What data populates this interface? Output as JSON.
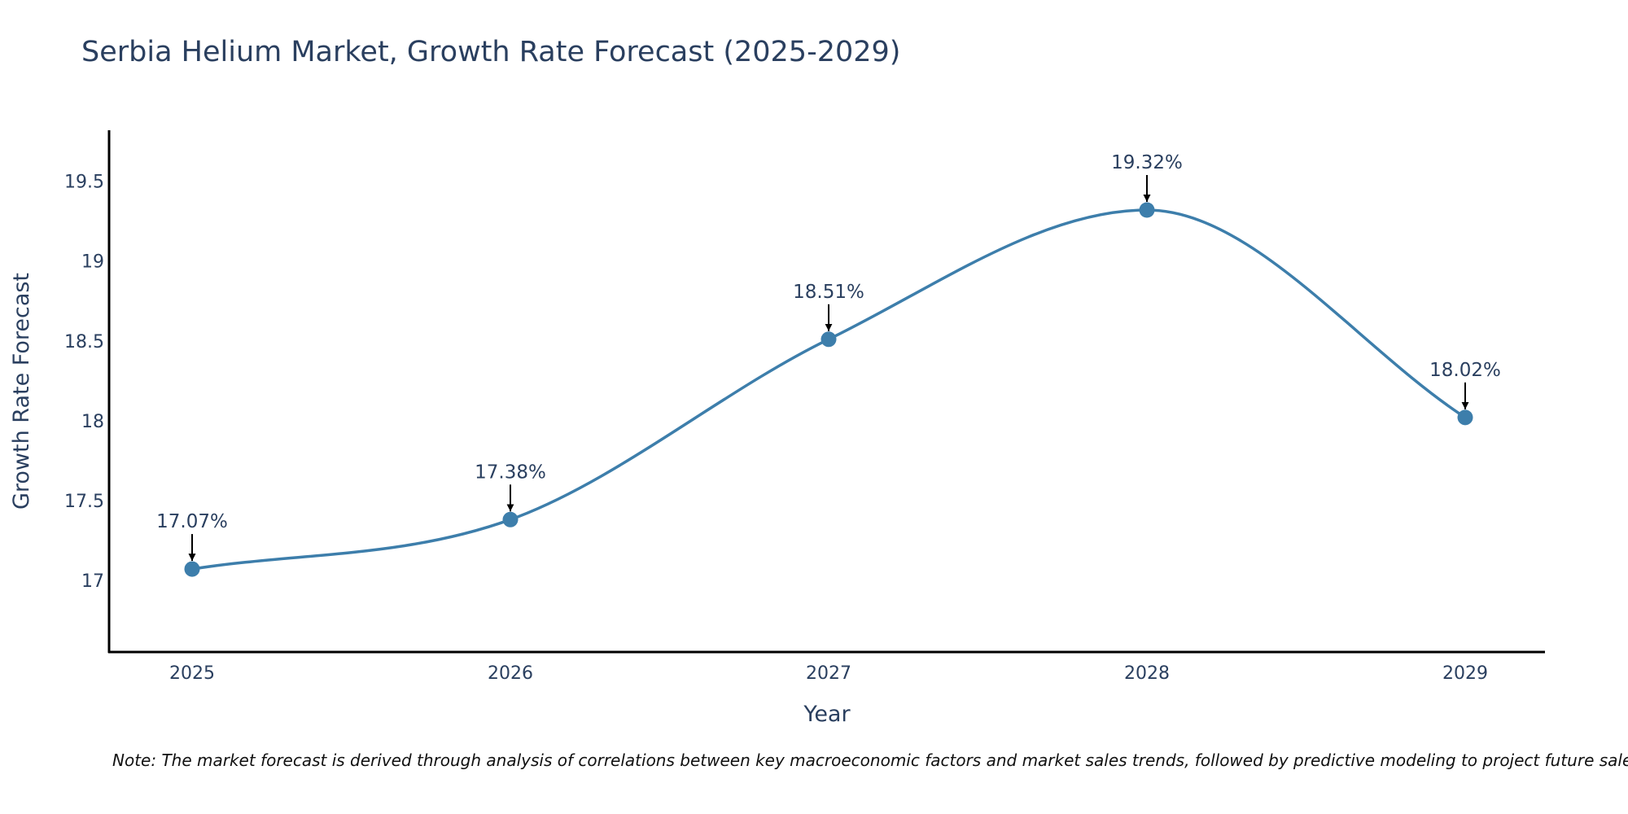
{
  "chart_data": {
    "type": "line",
    "title": "Serbia Helium Market, Growth Rate Forecast (2025-2029)",
    "xlabel": "Year",
    "ylabel": "Growth Rate Forecast",
    "categories": [
      "2025",
      "2026",
      "2027",
      "2028",
      "2029"
    ],
    "values": [
      17.07,
      17.38,
      18.51,
      19.32,
      18.02
    ],
    "data_labels": [
      "17.07%",
      "17.38%",
      "18.51%",
      "19.32%",
      "18.02%"
    ],
    "y_ticks": [
      17,
      17.5,
      18,
      18.5,
      19,
      19.5
    ],
    "y_tick_labels": [
      "17",
      "17.5",
      "18",
      "18.5",
      "19",
      "19.5"
    ],
    "ylim": [
      16.55,
      19.82
    ],
    "grid": false,
    "line_color": "#3d7eab",
    "note": "Note: The market forecast is derived through analysis of correlations between key macroeconomic factors and market sales trends, followed by predictive modeling to project future sales"
  }
}
